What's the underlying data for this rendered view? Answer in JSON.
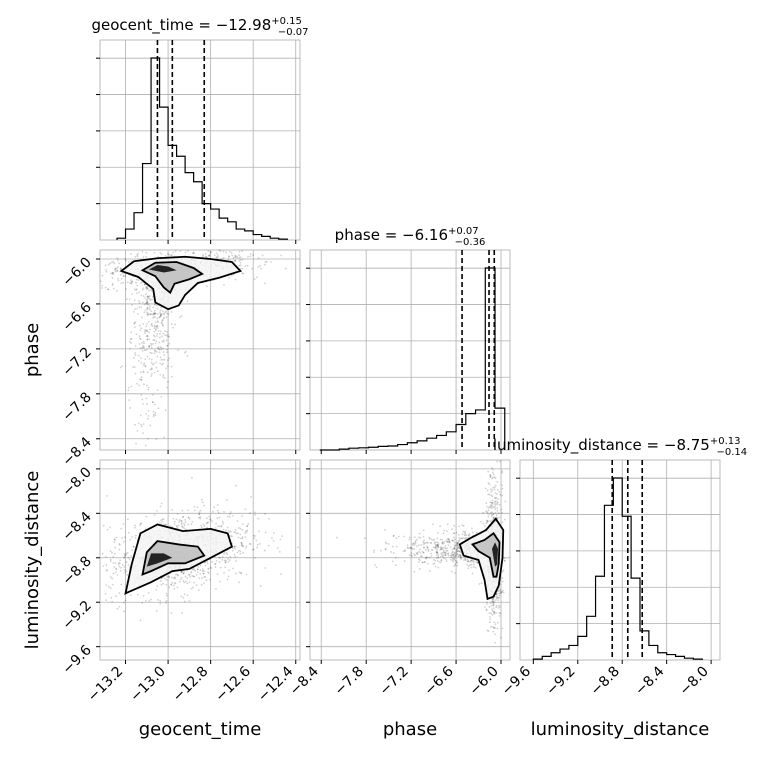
{
  "chart_data": {
    "type": "corner",
    "parameters": [
      "geocent_time",
      "phase",
      "luminosity_distance"
    ],
    "axis_labels": {
      "geocent_time": "geocent_time",
      "phase": "phase",
      "luminosity_distance": "luminosity_distance"
    },
    "grid": true,
    "ranges": {
      "geocent_time": [
        -13.32,
        -12.38
      ],
      "phase": [
        -8.55,
        -5.88
      ],
      "luminosity_distance": [
        -9.72,
        -7.92
      ]
    },
    "ticks": {
      "geocent_time": [
        -13.2,
        -13.0,
        -12.8,
        -12.6,
        -12.4
      ],
      "phase": [
        -8.4,
        -7.8,
        -7.2,
        -6.6,
        -6.0
      ],
      "luminosity_distance": [
        -9.6,
        -9.2,
        -8.8,
        -8.4,
        -8.0
      ]
    },
    "tick_labels": {
      "geocent_time": [
        "−13.2",
        "−13.0",
        "−12.8",
        "−12.6",
        "−12.4"
      ],
      "phase": [
        "−8.4",
        "−7.8",
        "−7.2",
        "−6.6",
        "−6.0"
      ],
      "luminosity_distance": [
        "−9.6",
        "−9.2",
        "−8.8",
        "−8.4",
        "−8.0"
      ]
    },
    "titles": [
      {
        "name": "geocent_time",
        "median": "−12.98",
        "plus": "+0.15",
        "minus": "−0.07"
      },
      {
        "name": "phase",
        "median": "−6.16",
        "plus": "+0.07",
        "minus": "−0.36"
      },
      {
        "name": "luminosity_distance",
        "median": "−8.75",
        "plus": "+0.13",
        "minus": "−0.14"
      }
    ],
    "marginals": [
      {
        "parameter": "geocent_time",
        "bin_edges": [
          -13.24,
          -13.2,
          -13.16,
          -13.12,
          -13.08,
          -13.04,
          -13.0,
          -12.96,
          -12.92,
          -12.88,
          -12.84,
          -12.8,
          -12.76,
          -12.72,
          -12.68,
          -12.64,
          -12.6,
          -12.56,
          -12.52,
          -12.48,
          -12.44
        ],
        "counts": [
          0.01,
          0.06,
          0.15,
          0.42,
          1.0,
          0.73,
          0.52,
          0.46,
          0.37,
          0.32,
          0.2,
          0.17,
          0.12,
          0.1,
          0.06,
          0.05,
          0.03,
          0.02,
          0.01,
          0.005
        ],
        "quantiles": [
          -13.05,
          -12.98,
          -12.83
        ]
      },
      {
        "parameter": "phase",
        "bin_edges": [
          -8.42,
          -8.29,
          -8.16,
          -8.03,
          -7.9,
          -7.77,
          -7.64,
          -7.51,
          -7.38,
          -7.25,
          -7.12,
          -6.99,
          -6.86,
          -6.73,
          -6.6,
          -6.47,
          -6.34,
          -6.21,
          -6.08,
          -5.95
        ],
        "counts": [
          0.0,
          0.0,
          0.005,
          0.01,
          0.012,
          0.015,
          0.02,
          0.022,
          0.03,
          0.04,
          0.05,
          0.065,
          0.08,
          0.1,
          0.14,
          0.2,
          0.22,
          1.0,
          0.23
        ],
        "quantiles": [
          -6.52,
          -6.16,
          -6.09
        ]
      },
      {
        "parameter": "luminosity_distance",
        "bin_edges": [
          -9.6,
          -9.52,
          -9.44,
          -9.36,
          -9.28,
          -9.2,
          -9.12,
          -9.04,
          -8.96,
          -8.88,
          -8.8,
          -8.72,
          -8.64,
          -8.56,
          -8.48,
          -8.4,
          -8.32,
          -8.24,
          -8.16,
          -8.08
        ],
        "counts": [
          0.005,
          0.02,
          0.04,
          0.06,
          0.08,
          0.13,
          0.24,
          0.46,
          0.85,
          1.0,
          0.79,
          0.45,
          0.16,
          0.08,
          0.04,
          0.03,
          0.02,
          0.01,
          0.005
        ],
        "quantiles": [
          -8.89,
          -8.75,
          -8.62
        ]
      }
    ],
    "joint": [
      {
        "x": "geocent_time",
        "y": "phase",
        "scatter_center": [
          -12.98,
          -6.2
        ],
        "contours": [
          [
            [
              -13.22,
              -6.16
            ],
            [
              -13.16,
              -6.03
            ],
            [
              -13.05,
              -5.99
            ],
            [
              -12.92,
              -5.97
            ],
            [
              -12.8,
              -6.0
            ],
            [
              -12.7,
              -6.04
            ],
            [
              -12.66,
              -6.16
            ],
            [
              -12.76,
              -6.25
            ],
            [
              -12.86,
              -6.32
            ],
            [
              -12.92,
              -6.48
            ],
            [
              -12.95,
              -6.62
            ],
            [
              -13.0,
              -6.67
            ],
            [
              -13.06,
              -6.58
            ],
            [
              -13.07,
              -6.4
            ],
            [
              -13.14,
              -6.24
            ],
            [
              -13.22,
              -6.16
            ]
          ],
          [
            [
              -13.12,
              -6.15
            ],
            [
              -13.06,
              -6.05
            ],
            [
              -12.96,
              -6.04
            ],
            [
              -12.88,
              -6.12
            ],
            [
              -12.84,
              -6.2
            ],
            [
              -12.9,
              -6.27
            ],
            [
              -12.97,
              -6.33
            ],
            [
              -12.99,
              -6.45
            ],
            [
              -13.02,
              -6.38
            ],
            [
              -13.06,
              -6.23
            ],
            [
              -13.12,
              -6.15
            ]
          ],
          [
            [
              -13.09,
              -6.14
            ],
            [
              -13.05,
              -6.08
            ],
            [
              -13.0,
              -6.1
            ],
            [
              -12.96,
              -6.15
            ],
            [
              -13.02,
              -6.18
            ],
            [
              -13.09,
              -6.14
            ]
          ]
        ]
      },
      {
        "x": "geocent_time",
        "y": "luminosity_distance",
        "scatter_center": [
          -12.95,
          -8.75
        ],
        "contours": [
          [
            [
              -13.2,
              -9.12
            ],
            [
              -13.17,
              -8.85
            ],
            [
              -13.13,
              -8.58
            ],
            [
              -13.05,
              -8.5
            ],
            [
              -12.93,
              -8.56
            ],
            [
              -12.8,
              -8.54
            ],
            [
              -12.72,
              -8.58
            ],
            [
              -12.7,
              -8.7
            ],
            [
              -12.8,
              -8.8
            ],
            [
              -12.9,
              -8.9
            ],
            [
              -12.98,
              -8.92
            ],
            [
              -13.08,
              -9.02
            ],
            [
              -13.2,
              -9.12
            ]
          ],
          [
            [
              -13.12,
              -8.95
            ],
            [
              -13.1,
              -8.75
            ],
            [
              -13.05,
              -8.65
            ],
            [
              -12.95,
              -8.68
            ],
            [
              -12.86,
              -8.7
            ],
            [
              -12.83,
              -8.78
            ],
            [
              -12.92,
              -8.85
            ],
            [
              -13.0,
              -8.85
            ],
            [
              -13.08,
              -8.92
            ],
            [
              -13.12,
              -8.95
            ]
          ],
          [
            [
              -13.1,
              -8.88
            ],
            [
              -13.08,
              -8.76
            ],
            [
              -13.02,
              -8.76
            ],
            [
              -12.98,
              -8.8
            ],
            [
              -13.05,
              -8.85
            ],
            [
              -13.1,
              -8.88
            ]
          ]
        ]
      },
      {
        "x": "phase",
        "y": "luminosity_distance",
        "scatter_center": [
          -6.3,
          -8.75
        ],
        "contours": [
          [
            [
              -6.18,
              -9.17
            ],
            [
              -6.22,
              -9.0
            ],
            [
              -6.3,
              -8.82
            ],
            [
              -6.5,
              -8.78
            ],
            [
              -6.55,
              -8.68
            ],
            [
              -6.4,
              -8.62
            ],
            [
              -6.2,
              -8.55
            ],
            [
              -6.07,
              -8.45
            ],
            [
              -5.97,
              -8.55
            ],
            [
              -5.98,
              -8.8
            ],
            [
              -6.03,
              -9.05
            ],
            [
              -6.1,
              -9.15
            ],
            [
              -6.18,
              -9.17
            ]
          ],
          [
            [
              -6.1,
              -8.97
            ],
            [
              -6.15,
              -8.8
            ],
            [
              -6.3,
              -8.74
            ],
            [
              -6.38,
              -8.68
            ],
            [
              -6.22,
              -8.64
            ],
            [
              -6.1,
              -8.58
            ],
            [
              -6.02,
              -8.66
            ],
            [
              -6.03,
              -8.85
            ],
            [
              -6.06,
              -8.97
            ],
            [
              -6.1,
              -8.97
            ]
          ],
          [
            [
              -6.08,
              -8.88
            ],
            [
              -6.12,
              -8.72
            ],
            [
              -6.08,
              -8.66
            ],
            [
              -6.04,
              -8.72
            ],
            [
              -6.05,
              -8.86
            ],
            [
              -6.08,
              -8.88
            ]
          ]
        ]
      }
    ]
  }
}
